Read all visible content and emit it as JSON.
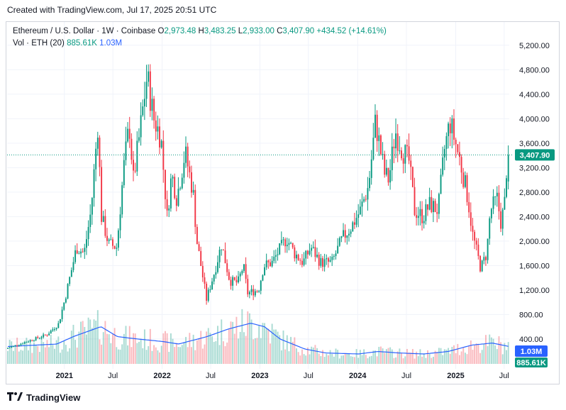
{
  "header": {
    "created": "Created with TradingView.com, Jul 17, 2025 20:51 UTC"
  },
  "legend": {
    "title": "Ethereum / U.S. Dollar · 1W · Coinbase",
    "o_label": "O",
    "o_value": "2,973.48",
    "h_label": "H",
    "h_value": "3,483.25",
    "l_label": "L",
    "l_value": "2,933.00",
    "c_label": "C",
    "c_value": "3,407.90",
    "change": "+434.52 (+14.61%)",
    "vol_label": "Vol · ETH (20)",
    "vol_value": "885.61K",
    "vol_ma": "1.03M"
  },
  "footer": {
    "brand": "TradingView"
  },
  "colors": {
    "up": "#089981",
    "down": "#f23645",
    "ma": "#2962ff",
    "grid": "#f0f3fa",
    "text": "#131722"
  },
  "chart_data": {
    "type": "candlestick",
    "ylim": [
      0,
      5400
    ],
    "y_ticks": [
      "5,200.00",
      "4,800.00",
      "4,400.00",
      "4,000.00",
      "3,600.00",
      "3,200.00",
      "2,800.00",
      "2,400.00",
      "2,000.00",
      "1,600.00",
      "1,200.00",
      "800.00",
      "400.00"
    ],
    "y_tick_values": [
      5200,
      4800,
      4400,
      4000,
      3600,
      3200,
      2800,
      2400,
      2000,
      1600,
      1200,
      800,
      400
    ],
    "x_ticks": [
      "2021",
      "Jul",
      "2022",
      "Jul",
      "2023",
      "Jul",
      "2024",
      "Jul",
      "2025",
      "Jul"
    ],
    "x_tick_dates": [
      "2021-01-01",
      "2021-07-01",
      "2022-01-01",
      "2022-07-01",
      "2023-01-01",
      "2023-07-01",
      "2024-01-01",
      "2024-07-01",
      "2025-01-01",
      "2025-07-01"
    ],
    "last_price_label": "3,407.90",
    "last_price": 3407.9,
    "volume_labels": {
      "ma": "1.03M",
      "vol": "885.61K"
    },
    "price_path": [
      [
        "2020-06-01",
        240
      ],
      [
        "2020-09-01",
        380
      ],
      [
        "2020-11-01",
        470
      ],
      [
        "2020-12-15",
        650
      ],
      [
        "2021-01-10",
        1100
      ],
      [
        "2021-02-20",
        1900
      ],
      [
        "2021-03-20",
        1800
      ],
      [
        "2021-04-15",
        2500
      ],
      [
        "2021-05-10",
        3900
      ],
      [
        "2021-05-24",
        2400
      ],
      [
        "2021-06-20",
        1950
      ],
      [
        "2021-07-20",
        1900
      ],
      [
        "2021-08-15",
        3200
      ],
      [
        "2021-09-05",
        3900
      ],
      [
        "2021-09-20",
        3000
      ],
      [
        "2021-10-15",
        3800
      ],
      [
        "2021-11-10",
        4700
      ],
      [
        "2021-12-05",
        4000
      ],
      [
        "2022-01-01",
        3700
      ],
      [
        "2022-01-24",
        2400
      ],
      [
        "2022-02-10",
        3100
      ],
      [
        "2022-03-01",
        2700
      ],
      [
        "2022-04-01",
        3450
      ],
      [
        "2022-05-01",
        2800
      ],
      [
        "2022-05-15",
        2000
      ],
      [
        "2022-06-20",
        1050
      ],
      [
        "2022-07-20",
        1500
      ],
      [
        "2022-08-15",
        1950
      ],
      [
        "2022-09-15",
        1350
      ],
      [
        "2022-10-15",
        1320
      ],
      [
        "2022-11-05",
        1600
      ],
      [
        "2022-11-20",
        1150
      ],
      [
        "2022-12-31",
        1200
      ],
      [
        "2023-01-20",
        1600
      ],
      [
        "2023-02-20",
        1650
      ],
      [
        "2023-04-15",
        2050
      ],
      [
        "2023-05-15",
        1800
      ],
      [
        "2023-06-15",
        1650
      ],
      [
        "2023-07-15",
        1900
      ],
      [
        "2023-08-20",
        1650
      ],
      [
        "2023-10-01",
        1650
      ],
      [
        "2023-11-10",
        2050
      ],
      [
        "2023-12-15",
        2250
      ],
      [
        "2024-01-15",
        2500
      ],
      [
        "2024-02-15",
        2900
      ],
      [
        "2024-03-12",
        3950
      ],
      [
        "2024-04-15",
        3100
      ],
      [
        "2024-05-01",
        3000
      ],
      [
        "2024-05-25",
        3800
      ],
      [
        "2024-06-20",
        3500
      ],
      [
        "2024-07-15",
        3300
      ],
      [
        "2024-08-05",
        2500
      ],
      [
        "2024-09-05",
        2400
      ],
      [
        "2024-10-01",
        2600
      ],
      [
        "2024-11-01",
        2500
      ],
      [
        "2024-11-25",
        3500
      ],
      [
        "2024-12-15",
        3950
      ],
      [
        "2025-01-05",
        3600
      ],
      [
        "2025-01-25",
        3250
      ],
      [
        "2025-02-20",
        2700
      ],
      [
        "2025-03-10",
        2100
      ],
      [
        "2025-04-09",
        1550
      ],
      [
        "2025-05-01",
        1800
      ],
      [
        "2025-05-15",
        2500
      ],
      [
        "2025-06-10",
        2700
      ],
      [
        "2025-06-22",
        2300
      ],
      [
        "2025-07-06",
        2550
      ],
      [
        "2025-07-17",
        3407.9
      ]
    ],
    "volume_ma_path": [
      [
        "2020-06-01",
        0.35
      ],
      [
        "2020-12-01",
        0.4
      ],
      [
        "2021-02-01",
        0.55
      ],
      [
        "2021-05-15",
        0.75
      ],
      [
        "2021-07-15",
        0.55
      ],
      [
        "2021-10-01",
        0.5
      ],
      [
        "2022-01-01",
        0.45
      ],
      [
        "2022-03-01",
        0.4
      ],
      [
        "2022-06-15",
        0.55
      ],
      [
        "2022-09-01",
        0.7
      ],
      [
        "2022-11-25",
        0.82
      ],
      [
        "2023-01-15",
        0.75
      ],
      [
        "2023-03-15",
        0.5
      ],
      [
        "2023-06-15",
        0.3
      ],
      [
        "2023-09-01",
        0.22
      ],
      [
        "2024-01-01",
        0.2
      ],
      [
        "2024-03-15",
        0.25
      ],
      [
        "2024-06-01",
        0.22
      ],
      [
        "2024-09-01",
        0.2
      ],
      [
        "2024-12-01",
        0.25
      ],
      [
        "2025-03-01",
        0.38
      ],
      [
        "2025-05-15",
        0.42
      ],
      [
        "2025-07-17",
        0.35
      ]
    ]
  }
}
